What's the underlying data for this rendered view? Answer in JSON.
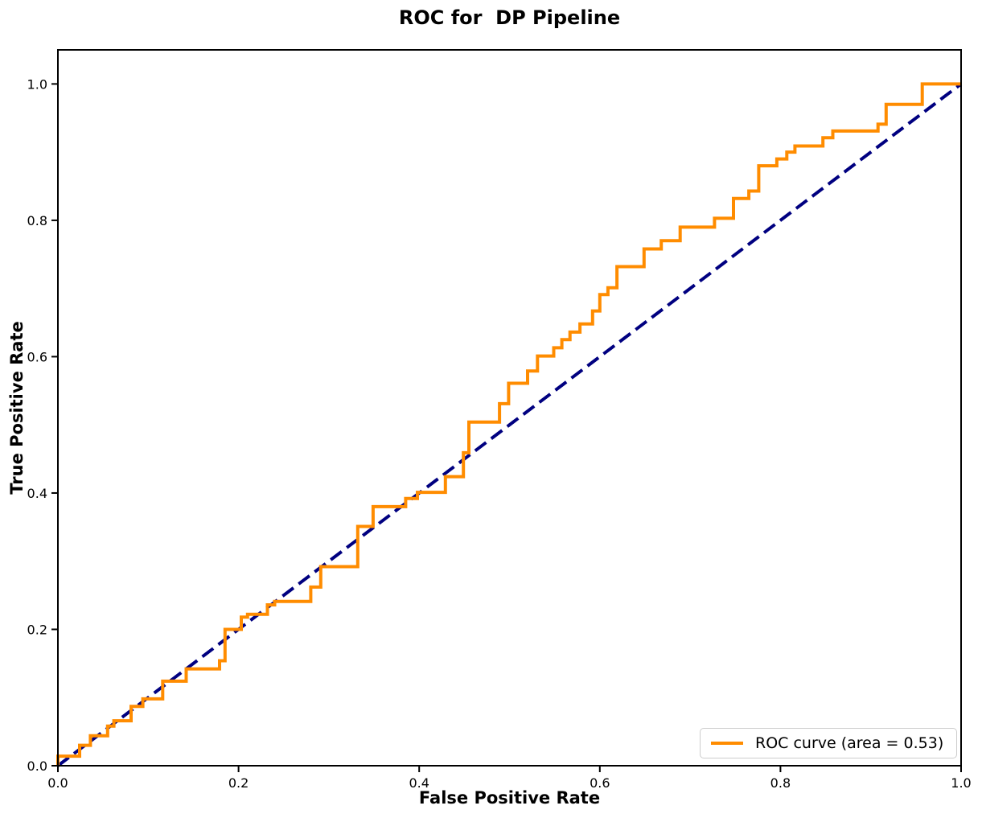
{
  "figure": {
    "title": "ROC for  DP Pipeline",
    "legend": {
      "label": "ROC curve (area = 0.53)"
    },
    "colors": {
      "roc_line": "#FF8C00",
      "diagonal_line": "#000080",
      "spine": "#000000",
      "tick_text": "#000000",
      "legend_border": "#cccccc",
      "background": "#ffffff"
    }
  },
  "chart_data": {
    "type": "line",
    "title": "ROC for  DP Pipeline",
    "xlabel": "False Positive Rate",
    "ylabel": "True Positive Rate",
    "xlim": [
      0.0,
      1.0
    ],
    "ylim": [
      0.0,
      1.05
    ],
    "x_ticks": [
      0.0,
      0.2,
      0.4,
      0.6,
      0.8,
      1.0
    ],
    "y_ticks": [
      0.0,
      0.2,
      0.4,
      0.6,
      0.8,
      1.0
    ],
    "grid": false,
    "legend_position": "lower right",
    "series": [
      {
        "name": "ROC curve (area = 0.53)",
        "auc": 0.53,
        "color": "#FF8C00",
        "style": "solid",
        "line_width": 4,
        "points": [
          [
            0.0,
            0.0
          ],
          [
            0.0,
            0.014
          ],
          [
            0.024,
            0.014
          ],
          [
            0.024,
            0.03
          ],
          [
            0.036,
            0.03
          ],
          [
            0.036,
            0.044
          ],
          [
            0.055,
            0.044
          ],
          [
            0.055,
            0.058
          ],
          [
            0.062,
            0.058
          ],
          [
            0.062,
            0.066
          ],
          [
            0.081,
            0.066
          ],
          [
            0.081,
            0.087
          ],
          [
            0.094,
            0.087
          ],
          [
            0.094,
            0.098
          ],
          [
            0.116,
            0.098
          ],
          [
            0.116,
            0.124
          ],
          [
            0.142,
            0.124
          ],
          [
            0.142,
            0.142
          ],
          [
            0.179,
            0.142
          ],
          [
            0.179,
            0.154
          ],
          [
            0.185,
            0.154
          ],
          [
            0.185,
            0.2
          ],
          [
            0.203,
            0.2
          ],
          [
            0.203,
            0.218
          ],
          [
            0.21,
            0.218
          ],
          [
            0.21,
            0.222
          ],
          [
            0.232,
            0.222
          ],
          [
            0.232,
            0.236
          ],
          [
            0.24,
            0.236
          ],
          [
            0.24,
            0.241
          ],
          [
            0.28,
            0.241
          ],
          [
            0.28,
            0.262
          ],
          [
            0.291,
            0.262
          ],
          [
            0.291,
            0.292
          ],
          [
            0.332,
            0.292
          ],
          [
            0.332,
            0.351
          ],
          [
            0.349,
            0.351
          ],
          [
            0.349,
            0.38
          ],
          [
            0.385,
            0.38
          ],
          [
            0.385,
            0.392
          ],
          [
            0.398,
            0.392
          ],
          [
            0.398,
            0.401
          ],
          [
            0.429,
            0.401
          ],
          [
            0.429,
            0.424
          ],
          [
            0.449,
            0.424
          ],
          [
            0.449,
            0.459
          ],
          [
            0.455,
            0.459
          ],
          [
            0.455,
            0.504
          ],
          [
            0.489,
            0.504
          ],
          [
            0.489,
            0.531
          ],
          [
            0.499,
            0.531
          ],
          [
            0.499,
            0.561
          ],
          [
            0.52,
            0.561
          ],
          [
            0.52,
            0.579
          ],
          [
            0.531,
            0.579
          ],
          [
            0.531,
            0.601
          ],
          [
            0.549,
            0.601
          ],
          [
            0.549,
            0.613
          ],
          [
            0.558,
            0.613
          ],
          [
            0.558,
            0.625
          ],
          [
            0.567,
            0.625
          ],
          [
            0.567,
            0.636
          ],
          [
            0.578,
            0.636
          ],
          [
            0.578,
            0.648
          ],
          [
            0.592,
            0.648
          ],
          [
            0.592,
            0.667
          ],
          [
            0.6,
            0.667
          ],
          [
            0.6,
            0.691
          ],
          [
            0.609,
            0.691
          ],
          [
            0.609,
            0.701
          ],
          [
            0.619,
            0.701
          ],
          [
            0.619,
            0.732
          ],
          [
            0.649,
            0.732
          ],
          [
            0.649,
            0.758
          ],
          [
            0.668,
            0.758
          ],
          [
            0.668,
            0.77
          ],
          [
            0.689,
            0.77
          ],
          [
            0.689,
            0.79
          ],
          [
            0.727,
            0.79
          ],
          [
            0.727,
            0.803
          ],
          [
            0.748,
            0.803
          ],
          [
            0.748,
            0.832
          ],
          [
            0.765,
            0.832
          ],
          [
            0.765,
            0.843
          ],
          [
            0.776,
            0.843
          ],
          [
            0.776,
            0.88
          ],
          [
            0.796,
            0.88
          ],
          [
            0.796,
            0.89
          ],
          [
            0.807,
            0.89
          ],
          [
            0.807,
            0.9
          ],
          [
            0.816,
            0.9
          ],
          [
            0.816,
            0.909
          ],
          [
            0.847,
            0.909
          ],
          [
            0.847,
            0.921
          ],
          [
            0.858,
            0.921
          ],
          [
            0.858,
            0.931
          ],
          [
            0.908,
            0.931
          ],
          [
            0.908,
            0.941
          ],
          [
            0.917,
            0.941
          ],
          [
            0.917,
            0.97
          ],
          [
            0.957,
            0.97
          ],
          [
            0.957,
            1.0
          ],
          [
            1.0,
            1.0
          ]
        ]
      },
      {
        "name": "chance-diagonal",
        "color": "#000080",
        "style": "dashed",
        "line_width": 4,
        "points": [
          [
            0.0,
            0.0
          ],
          [
            1.0,
            1.0
          ]
        ]
      }
    ]
  }
}
